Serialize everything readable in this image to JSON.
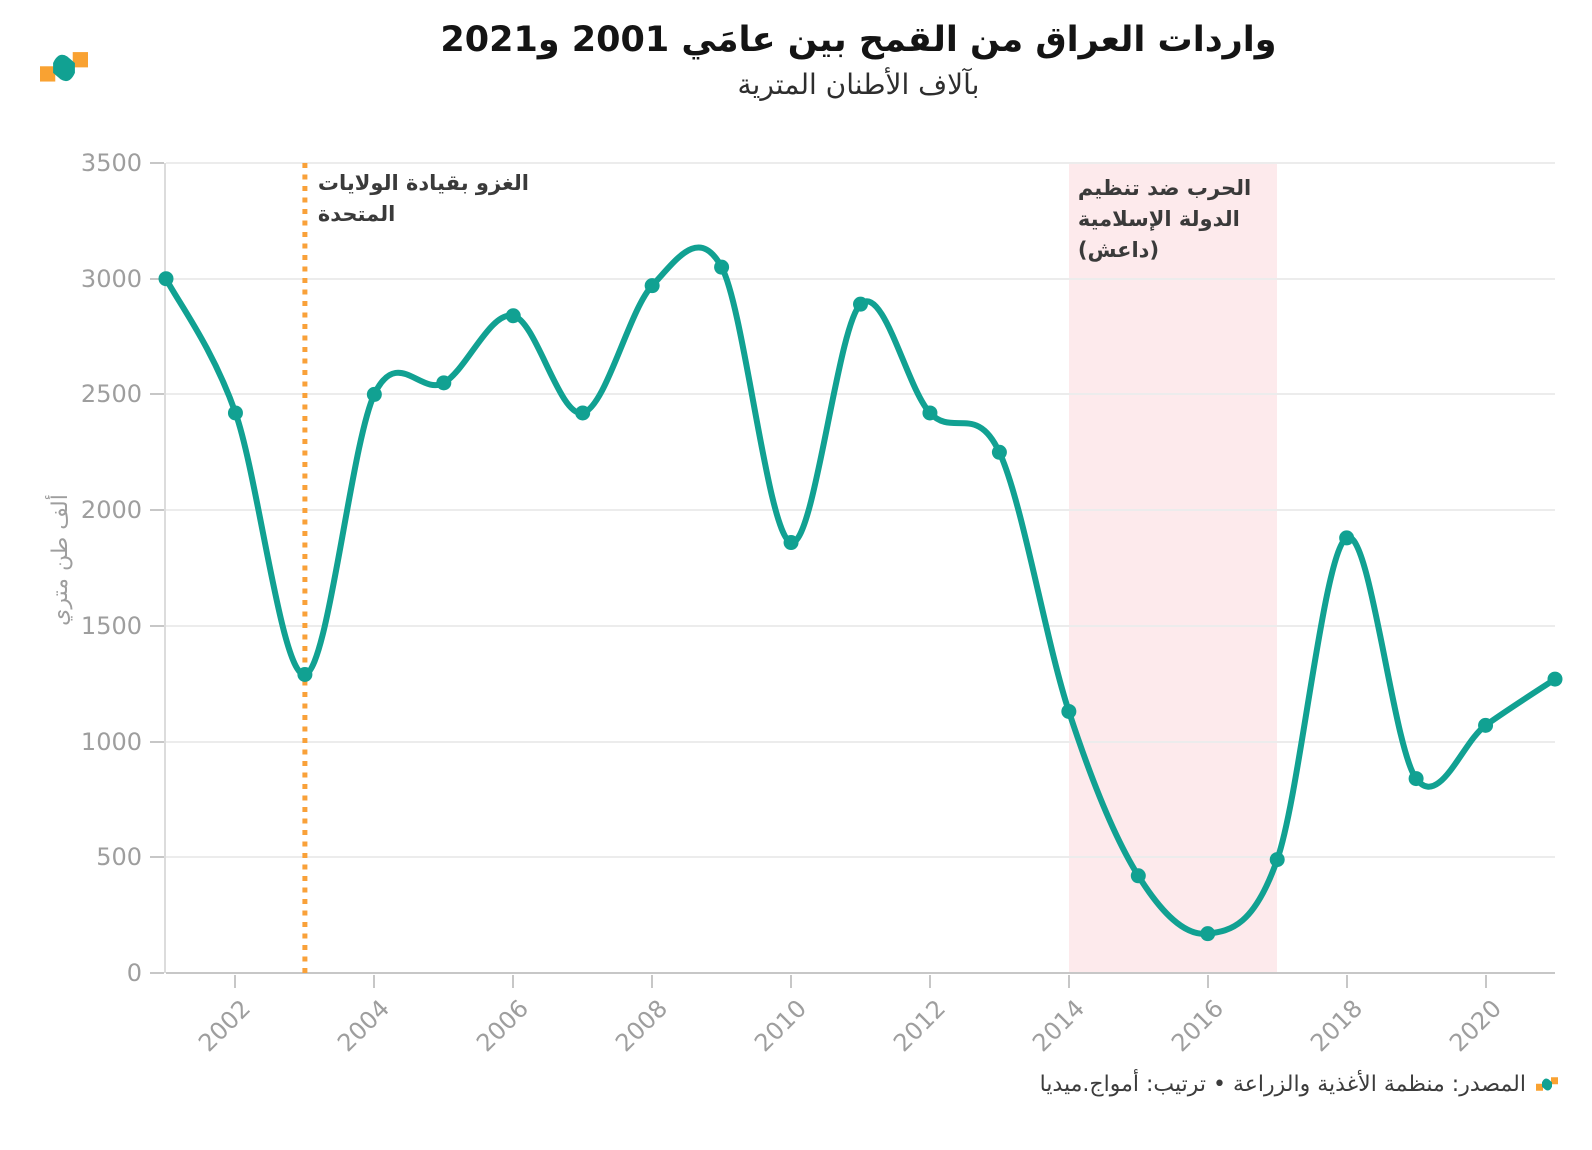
{
  "header": {
    "title": "واردات العراق من القمح بين عامَي 2001 و2021",
    "subtitle": "بآلاف الأطنان المترية"
  },
  "chart_data": {
    "type": "line",
    "title": "واردات العراق من القمح بين عامَي 2001 و2021",
    "subtitle": "بآلاف الأطنان المترية",
    "xlabel": "",
    "ylabel": "ألف طن متري",
    "x": [
      2001,
      2002,
      2003,
      2004,
      2005,
      2006,
      2007,
      2008,
      2009,
      2010,
      2011,
      2012,
      2013,
      2014,
      2015,
      2016,
      2017,
      2018,
      2019,
      2020,
      2021
    ],
    "values": [
      3000,
      2420,
      1290,
      2500,
      2550,
      2840,
      2420,
      2970,
      3050,
      1860,
      2890,
      2420,
      2250,
      1130,
      420,
      170,
      490,
      1880,
      840,
      1070,
      1270
    ],
    "xlim": [
      2001,
      2021
    ],
    "ylim": [
      0,
      3500
    ],
    "y_ticks": [
      0,
      500,
      1000,
      1500,
      2000,
      2500,
      3000,
      3500
    ],
    "x_ticks": [
      2002,
      2004,
      2006,
      2008,
      2010,
      2012,
      2014,
      2016,
      2018,
      2020
    ],
    "grid": "horizontal",
    "line_color": "#11a192",
    "marker_color": "#11a192",
    "annotations": [
      {
        "type": "vline",
        "x": 2003,
        "line_style": "dotted",
        "color": "#f9a139",
        "label_lines": [
          "الغزو بقيادة الولايات",
          "المتحدة"
        ]
      },
      {
        "type": "band",
        "x_start": 2014,
        "x_end": 2017,
        "color": "#fdeaec",
        "label_lines": [
          "الحرب ضد تنظيم",
          "الدولة الإسلامية",
          "(داعش)"
        ]
      }
    ]
  },
  "source": {
    "text": "المصدر: منظمة الأغذية والزراعة • ترتيب: أمواج.ميديا"
  },
  "logo_colors": {
    "teal": "#11a192",
    "orange": "#f9a232"
  }
}
